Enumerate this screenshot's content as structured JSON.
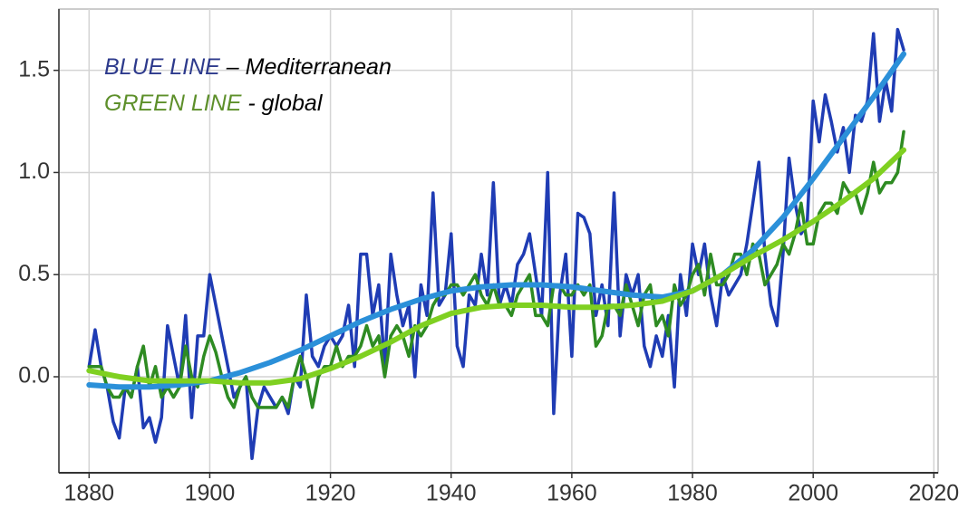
{
  "chart_data": {
    "type": "line",
    "legend": [
      {
        "key": "BLUE LINE",
        "text": "– Mediterranean",
        "color": "#2d3a8c"
      },
      {
        "key": "GREEN LINE",
        "text": "- global",
        "color": "#5d8f2a"
      }
    ],
    "x": [
      1880,
      1881,
      1882,
      1883,
      1884,
      1885,
      1886,
      1887,
      1888,
      1889,
      1890,
      1891,
      1892,
      1893,
      1894,
      1895,
      1896,
      1897,
      1898,
      1899,
      1900,
      1901,
      1902,
      1903,
      1904,
      1905,
      1906,
      1907,
      1908,
      1909,
      1910,
      1911,
      1912,
      1913,
      1914,
      1915,
      1916,
      1917,
      1918,
      1919,
      1920,
      1921,
      1922,
      1923,
      1924,
      1925,
      1926,
      1927,
      1928,
      1929,
      1930,
      1931,
      1932,
      1933,
      1934,
      1935,
      1936,
      1937,
      1938,
      1939,
      1940,
      1941,
      1942,
      1943,
      1944,
      1945,
      1946,
      1947,
      1948,
      1949,
      1950,
      1951,
      1952,
      1953,
      1954,
      1955,
      1956,
      1957,
      1958,
      1959,
      1960,
      1961,
      1962,
      1963,
      1964,
      1965,
      1966,
      1967,
      1968,
      1969,
      1970,
      1971,
      1972,
      1973,
      1974,
      1975,
      1976,
      1977,
      1978,
      1979,
      1980,
      1981,
      1982,
      1983,
      1984,
      1985,
      1986,
      1987,
      1988,
      1989,
      1990,
      1991,
      1992,
      1993,
      1994,
      1995,
      1996,
      1997,
      1998,
      1999,
      2000,
      2001,
      2002,
      2003,
      2004,
      2005,
      2006,
      2007,
      2008,
      2009,
      2010,
      2011,
      2012,
      2013,
      2014,
      2015
    ],
    "series": [
      {
        "color": "#1f3cb4",
        "width": 3.5,
        "values": [
          0.05,
          0.23,
          0.05,
          -0.05,
          -0.22,
          -0.3,
          -0.05,
          -0.1,
          0.05,
          -0.25,
          -0.2,
          -0.32,
          -0.2,
          0.25,
          0.1,
          -0.05,
          0.3,
          -0.2,
          0.2,
          0.2,
          0.5,
          0.35,
          0.2,
          0.05,
          -0.1,
          -0.05,
          0.0,
          -0.4,
          -0.15,
          -0.05,
          -0.1,
          -0.15,
          -0.1,
          -0.18,
          0.0,
          -0.05,
          0.4,
          0.1,
          0.05,
          0.15,
          0.2,
          0.15,
          0.2,
          0.35,
          0.05,
          0.6,
          0.6,
          0.3,
          0.45,
          0.05,
          0.6,
          0.4,
          0.25,
          0.35,
          0.0,
          0.45,
          0.3,
          0.9,
          0.35,
          0.4,
          0.7,
          0.15,
          0.05,
          0.4,
          0.35,
          0.6,
          0.4,
          0.95,
          0.35,
          0.45,
          0.35,
          0.55,
          0.6,
          0.7,
          0.5,
          0.3,
          1.0,
          -0.18,
          0.4,
          0.6,
          0.1,
          0.8,
          0.78,
          0.7,
          0.3,
          0.45,
          0.25,
          0.9,
          0.2,
          0.5,
          0.4,
          0.5,
          0.15,
          0.05,
          0.2,
          0.1,
          0.3,
          -0.05,
          0.5,
          0.3,
          0.65,
          0.5,
          0.65,
          0.4,
          0.25,
          0.5,
          0.4,
          0.45,
          0.5,
          0.65,
          0.85,
          1.05,
          0.6,
          0.35,
          0.25,
          0.6,
          1.07,
          0.85,
          0.7,
          0.75,
          1.35,
          1.15,
          1.38,
          1.25,
          1.1,
          1.22,
          1.0,
          1.28,
          1.25,
          1.35,
          1.68,
          1.25,
          1.45,
          1.3,
          1.7,
          1.6
        ]
      },
      {
        "color": "#2e8b22",
        "width": 3.5,
        "values": [
          0.05,
          0.05,
          0.05,
          -0.05,
          -0.1,
          -0.1,
          -0.05,
          -0.1,
          0.05,
          0.15,
          -0.05,
          0.05,
          -0.1,
          -0.05,
          -0.1,
          -0.05,
          0.15,
          0.0,
          -0.05,
          0.1,
          0.2,
          0.12,
          0.0,
          -0.1,
          -0.15,
          -0.05,
          0.0,
          -0.1,
          -0.15,
          -0.15,
          -0.15,
          -0.15,
          -0.1,
          -0.15,
          0.0,
          0.1,
          0.0,
          -0.15,
          0.0,
          0.05,
          0.05,
          0.15,
          0.05,
          0.1,
          0.1,
          0.15,
          0.25,
          0.15,
          0.2,
          0.0,
          0.2,
          0.25,
          0.2,
          0.1,
          0.25,
          0.2,
          0.25,
          0.35,
          0.4,
          0.4,
          0.45,
          0.45,
          0.4,
          0.45,
          0.5,
          0.4,
          0.35,
          0.45,
          0.35,
          0.35,
          0.3,
          0.4,
          0.45,
          0.5,
          0.3,
          0.3,
          0.25,
          0.45,
          0.45,
          0.4,
          0.4,
          0.45,
          0.4,
          0.45,
          0.15,
          0.2,
          0.35,
          0.35,
          0.3,
          0.45,
          0.35,
          0.25,
          0.4,
          0.45,
          0.25,
          0.3,
          0.2,
          0.45,
          0.35,
          0.4,
          0.5,
          0.55,
          0.4,
          0.6,
          0.45,
          0.45,
          0.5,
          0.6,
          0.6,
          0.5,
          0.65,
          0.6,
          0.45,
          0.5,
          0.55,
          0.65,
          0.6,
          0.7,
          0.85,
          0.65,
          0.65,
          0.8,
          0.85,
          0.85,
          0.8,
          0.95,
          0.9,
          0.9,
          0.8,
          0.9,
          1.05,
          0.9,
          0.95,
          0.95,
          1.0,
          1.2
        ]
      },
      {
        "color": "#2b90d9",
        "width": 6,
        "x": [
          1880,
          1885,
          1890,
          1895,
          1900,
          1905,
          1910,
          1915,
          1920,
          1925,
          1930,
          1935,
          1940,
          1945,
          1950,
          1955,
          1960,
          1965,
          1970,
          1975,
          1980,
          1985,
          1990,
          1995,
          2000,
          2005,
          2010,
          2015
        ],
        "values": [
          -0.04,
          -0.05,
          -0.05,
          -0.04,
          -0.02,
          0.02,
          0.07,
          0.13,
          0.2,
          0.27,
          0.33,
          0.38,
          0.42,
          0.44,
          0.45,
          0.45,
          0.44,
          0.42,
          0.4,
          0.39,
          0.42,
          0.5,
          0.62,
          0.78,
          0.97,
          1.17,
          1.37,
          1.58
        ]
      },
      {
        "color": "#7fd021",
        "width": 6,
        "x": [
          1880,
          1885,
          1890,
          1895,
          1900,
          1905,
          1910,
          1915,
          1920,
          1925,
          1930,
          1935,
          1940,
          1945,
          1950,
          1955,
          1960,
          1965,
          1970,
          1975,
          1980,
          1985,
          1990,
          1995,
          2000,
          2005,
          2010,
          2015
        ],
        "values": [
          0.03,
          0.0,
          -0.02,
          -0.02,
          -0.02,
          -0.03,
          -0.03,
          -0.01,
          0.04,
          0.1,
          0.17,
          0.25,
          0.31,
          0.34,
          0.35,
          0.35,
          0.34,
          0.34,
          0.35,
          0.37,
          0.42,
          0.5,
          0.59,
          0.67,
          0.76,
          0.86,
          0.97,
          1.11
        ]
      }
    ],
    "xlim": [
      1875,
      2020.7
    ],
    "ylim": [
      -0.47,
      1.8
    ],
    "xticks": [
      1880,
      1900,
      1920,
      1940,
      1960,
      1980,
      2000,
      2020
    ],
    "yticks": [
      {
        "value": 0,
        "label": "0.0"
      },
      0.5,
      {
        "value": 1,
        "label": "1.0"
      },
      1.5
    ],
    "grid": true
  }
}
